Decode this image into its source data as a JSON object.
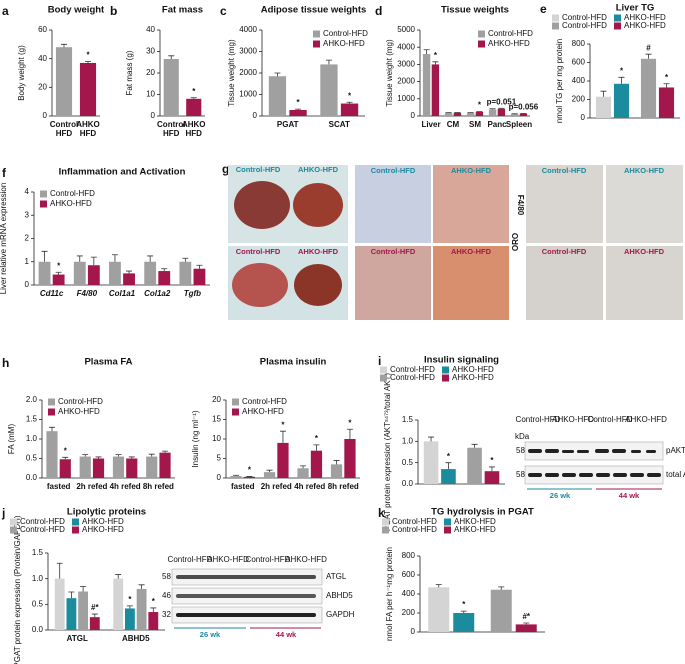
{
  "chart_data": [
    {
      "type": "bar",
      "letter": "a",
      "title": "Body weight",
      "ylabel": "Body weight (g)",
      "wrap_categories": true,
      "categories": [
        "Control HFD",
        "AHKO HFD"
      ],
      "series": [
        {
          "colors": [
            "#a0a0a0",
            "#a3174d"
          ],
          "values": [
            48,
            37
          ],
          "errors": [
            2,
            1
          ],
          "marks": [
            null,
            "*"
          ]
        }
      ],
      "ylim": [
        0,
        60
      ],
      "yticks": [
        0,
        20,
        40,
        60
      ]
    },
    {
      "type": "bar",
      "letter": "b",
      "title": "Fat mass",
      "ylabel": "Fat mass (g)",
      "wrap_categories": true,
      "categories": [
        "Control HFD",
        "AHKO HFD"
      ],
      "series": [
        {
          "colors": [
            "#a0a0a0",
            "#a3174d"
          ],
          "values": [
            26.5,
            8
          ],
          "errors": [
            1.5,
            0.5
          ],
          "marks": [
            null,
            "*"
          ]
        }
      ],
      "ylim": [
        0,
        40
      ],
      "yticks": [
        0,
        10,
        20,
        30,
        40
      ]
    },
    {
      "type": "bar",
      "letter": "c",
      "title": "Adipose tissue weights",
      "ylabel": "Tissue weight (mg)",
      "legend": "top-right",
      "categories": [
        "PGAT",
        "SCAT"
      ],
      "series": [
        {
          "name": "Control-HFD",
          "color": "#a0a0a0",
          "values": [
            1850,
            2400
          ],
          "errors": [
            150,
            200
          ],
          "marks": [
            null,
            null
          ]
        },
        {
          "name": "AHKO-HFD",
          "color": "#a3174d",
          "values": [
            280,
            580
          ],
          "errors": [
            40,
            60
          ],
          "marks": [
            "*",
            "*"
          ]
        }
      ],
      "ylim": [
        0,
        4000
      ],
      "yticks": [
        0,
        1000,
        2000,
        3000,
        4000
      ]
    },
    {
      "type": "bar",
      "letter": "d",
      "title": "Tissue weights",
      "ylabel": "Tissue weight (mg)",
      "legend": "top-right",
      "categories": [
        "Liver",
        "CM",
        "SM",
        "Panc",
        "Spleen"
      ],
      "series": [
        {
          "name": "Control-HFD",
          "color": "#a0a0a0",
          "values": [
            3600,
            180,
            180,
            380,
            120
          ],
          "errors": [
            250,
            15,
            15,
            40,
            12
          ],
          "marks": [
            null,
            null,
            null,
            null,
            null
          ]
        },
        {
          "name": "AHKO-HFD",
          "color": "#a3174d",
          "values": [
            3000,
            190,
            240,
            420,
            130
          ],
          "errors": [
            150,
            15,
            15,
            30,
            12
          ],
          "marks": [
            "*",
            null,
            "*",
            "p=0.051",
            "p=0.056"
          ]
        }
      ],
      "ylim": [
        0,
        5000
      ],
      "yticks": [
        0,
        1000,
        2000,
        3000,
        4000,
        5000
      ]
    },
    {
      "type": "bar",
      "letter": "e",
      "title": "Liver TG",
      "ylabel": "nmol TG per mg protein",
      "legend": "top-grid",
      "categories": [
        null,
        null
      ],
      "series": [
        {
          "name": "Control-HFD",
          "color": "#d4d4d4",
          "values": [
            230,
            null
          ],
          "errors": [
            60,
            null
          ],
          "marks": [
            null,
            null
          ]
        },
        {
          "name": "AHKO-HFD",
          "color": "#1b8b9e",
          "values": [
            370,
            null
          ],
          "errors": [
            70,
            null
          ],
          "marks": [
            "*",
            null
          ]
        },
        {
          "name": "Control-HFD",
          "color": "#a0a0a0",
          "values": [
            null,
            640
          ],
          "errors": [
            null,
            50
          ],
          "marks": [
            null,
            "#"
          ]
        },
        {
          "name": "AHKO-HFD",
          "color": "#a3174d",
          "values": [
            null,
            330
          ],
          "errors": [
            null,
            40
          ],
          "marks": [
            null,
            "*"
          ]
        }
      ],
      "ylim": [
        0,
        800
      ],
      "yticks": [
        0,
        200,
        400,
        600,
        800
      ]
    },
    {
      "type": "bar",
      "letter": "f",
      "title": "Inflammation and Activation",
      "ylabel": "Liver relative mRNA expression",
      "legend": "top-left",
      "italic_categories": true,
      "categories": [
        "Cd11c",
        "F4/80",
        "Col1a1",
        "Col1a2",
        "Tgfb"
      ],
      "series": [
        {
          "name": "Control-HFD",
          "color": "#a0a0a0",
          "values": [
            1.0,
            1.0,
            1.0,
            1.0,
            1.0
          ],
          "errors": [
            0.45,
            0.25,
            0.3,
            0.25,
            0.15
          ],
          "marks": [
            null,
            null,
            null,
            null,
            null
          ]
        },
        {
          "name": "AHKO-HFD",
          "color": "#a3174d",
          "values": [
            0.45,
            0.85,
            0.5,
            0.6,
            0.7
          ],
          "errors": [
            0.1,
            0.35,
            0.1,
            0.1,
            0.15
          ],
          "marks": [
            "*",
            null,
            null,
            null,
            null
          ]
        }
      ],
      "ylim": [
        0,
        4
      ],
      "yticks": [
        0,
        1,
        2,
        3,
        4
      ]
    },
    {
      "type": "bar",
      "letter": "h",
      "title": "Plasma FA",
      "ylabel": "FA (mM)",
      "legend": "top-left",
      "categories": [
        "fasted",
        "2h refed",
        "4h refed",
        "8h refed"
      ],
      "series": [
        {
          "name": "Control-HFD",
          "color": "#a0a0a0",
          "values": [
            1.2,
            0.55,
            0.55,
            0.55
          ],
          "errors": [
            0.1,
            0.05,
            0.05,
            0.06
          ],
          "marks": [
            null,
            null,
            null,
            null
          ]
        },
        {
          "name": "AHKO-HFD",
          "color": "#a3174d",
          "values": [
            0.48,
            0.5,
            0.5,
            0.65
          ],
          "errors": [
            0.05,
            0.04,
            0.04,
            0.04
          ],
          "marks": [
            "*",
            null,
            null,
            null
          ]
        }
      ],
      "ylim": [
        0,
        2
      ],
      "yticks": [
        {
          "value": 0,
          "label": "0.0"
        },
        {
          "value": 0.5,
          "label": "0.5"
        },
        {
          "value": 1,
          "label": "1.0"
        },
        {
          "value": 1.5,
          "label": "1.5"
        },
        {
          "value": 2,
          "label": "2.0"
        }
      ]
    },
    {
      "type": "bar",
      "title": "Plasma insulin",
      "ylabel": "Insulin (ng ml⁻¹)",
      "legend": "top-left",
      "categories": [
        "fasted",
        "2h refed",
        "4h refed",
        "8h refed"
      ],
      "series": [
        {
          "name": "Control-HFD",
          "color": "#a0a0a0",
          "values": [
            0.5,
            1.5,
            2.5,
            3.5
          ],
          "errors": [
            0.2,
            0.5,
            0.6,
            1.0
          ],
          "marks": [
            null,
            null,
            null,
            null
          ]
        },
        {
          "name": "AHKO-HFD",
          "color": "#a3174d",
          "values": [
            0.3,
            9,
            7,
            10
          ],
          "errors": [
            0.1,
            3,
            1.5,
            2.5
          ],
          "marks": [
            "*",
            "*",
            "*",
            "*"
          ]
        }
      ],
      "ylim": [
        0,
        20
      ],
      "yticks": [
        0,
        5,
        10,
        15,
        20
      ]
    },
    {
      "type": "bar",
      "letter": "i",
      "title": "Insulin signaling",
      "ylabel": "PGAT protein expression (AKTˢ⁴⁷³/total AKT)",
      "legend": "top-grid",
      "categories": [
        null,
        null
      ],
      "series": [
        {
          "name": "Control-HFD",
          "color": "#d4d4d4",
          "values": [
            1.0,
            null
          ],
          "errors": [
            0.1,
            null
          ],
          "marks": [
            null,
            null
          ]
        },
        {
          "name": "AHKO-HFD",
          "color": "#1b8b9e",
          "values": [
            0.35,
            null
          ],
          "errors": [
            0.15,
            null
          ],
          "marks": [
            "*",
            null
          ]
        },
        {
          "name": "Control-HFD",
          "color": "#a0a0a0",
          "values": [
            null,
            0.85
          ],
          "errors": [
            null,
            0.08
          ],
          "marks": [
            null,
            null
          ]
        },
        {
          "name": "AHKO-HFD",
          "color": "#a3174d",
          "values": [
            null,
            0.3
          ],
          "errors": [
            null,
            0.1
          ],
          "marks": [
            null,
            "*"
          ]
        }
      ],
      "ylim": [
        0,
        1.5
      ],
      "yticks": [
        {
          "value": 0,
          "label": "0.0"
        },
        {
          "value": 0.5,
          "label": "0.5"
        },
        {
          "value": 1,
          "label": "1.0"
        },
        {
          "value": 1.5,
          "label": "1.5"
        }
      ]
    },
    {
      "type": "bar",
      "letter": "j",
      "title": "Lipolytic proteins",
      "ylabel": "PGAT protein expression (Protein/GAPDH)",
      "legend": "top-grid",
      "categories": [
        "ATGL",
        "ABHD5"
      ],
      "series": [
        {
          "name": "Control-HFD",
          "color": "#d4d4d4",
          "values": [
            1.0,
            1.0
          ],
          "errors": [
            0.3,
            0.08
          ],
          "marks": [
            null,
            null
          ]
        },
        {
          "name": "AHKO-HFD",
          "color": "#1b8b9e",
          "values": [
            0.62,
            0.42
          ],
          "errors": [
            0.12,
            0.05
          ],
          "marks": [
            null,
            "*"
          ]
        },
        {
          "name": "Control-HFD",
          "color": "#a0a0a0",
          "values": [
            0.75,
            0.8
          ],
          "errors": [
            0.1,
            0.08
          ],
          "marks": [
            null,
            null
          ]
        },
        {
          "name": "AHKO-HFD",
          "color": "#a3174d",
          "values": [
            0.25,
            0.35
          ],
          "errors": [
            0.06,
            0.08
          ],
          "marks": [
            "#*",
            "*"
          ]
        }
      ],
      "ylim": [
        0,
        1.5
      ],
      "yticks": [
        {
          "value": 0,
          "label": "0.0"
        },
        {
          "value": 0.5,
          "label": "0.5"
        },
        {
          "value": 1,
          "label": "1.0"
        },
        {
          "value": 1.5,
          "label": "1.5"
        }
      ]
    },
    {
      "type": "bar",
      "letter": "k",
      "title": "TG hydrolysis in PGAT",
      "ylabel": "nmol FA per h⁻¹mg protein",
      "legend": "top-grid",
      "categories": [
        null,
        null
      ],
      "series": [
        {
          "name": "Control-HFD",
          "color": "#d4d4d4",
          "values": [
            470,
            null
          ],
          "errors": [
            30,
            null
          ],
          "marks": [
            null,
            null
          ]
        },
        {
          "name": "AHKO-HFD",
          "color": "#1b8b9e",
          "values": [
            200,
            null
          ],
          "errors": [
            20,
            null
          ],
          "marks": [
            "*",
            null
          ]
        },
        {
          "name": "Control-HFD",
          "color": "#a0a0a0",
          "values": [
            null,
            445
          ],
          "errors": [
            null,
            30
          ],
          "marks": [
            null,
            null
          ]
        },
        {
          "name": "AHKO-HFD",
          "color": "#a3174d",
          "values": [
            null,
            80
          ],
          "errors": [
            null,
            15
          ],
          "marks": [
            null,
            "#*"
          ]
        }
      ],
      "ylim": [
        0,
        800
      ],
      "yticks": [
        0,
        200,
        400,
        600,
        800
      ]
    }
  ],
  "panel_g": {
    "letter": "g",
    "photo_labels": [
      "Control-HFD",
      "AHKO-HFD",
      "Control-HFD",
      "AHKO-HFD"
    ],
    "oro_labels": [
      "Control-HFD",
      "AHKO-HFD",
      "Control-HFD",
      "AHKO-HFD"
    ],
    "oro": "ORO",
    "f480_labels": [
      "Control-HFD",
      "AHKO-HFD",
      "Control-HFD",
      "AHKO-HFD"
    ],
    "f480": "F4/80"
  },
  "blot_i": {
    "lanes": [
      "Control-HFD",
      "AHKO-HFD",
      "Control-HFD",
      "AHKO-HFD"
    ],
    "kda": "kDa",
    "sizes": [
      "58",
      "58"
    ],
    "bands": [
      "pAKT",
      "total AKT"
    ],
    "ages": [
      "26 wk",
      "44 wk"
    ]
  },
  "blot_j": {
    "lanes": [
      "Control-HFD",
      "AHKO-HFD",
      "Control-HFD",
      "AHKO-HFD"
    ],
    "sizes": [
      "58",
      "46",
      "32"
    ],
    "bands": [
      "ATGL",
      "ABHD5",
      "GAPDH"
    ],
    "ages": [
      "26 wk",
      "44 wk"
    ]
  }
}
